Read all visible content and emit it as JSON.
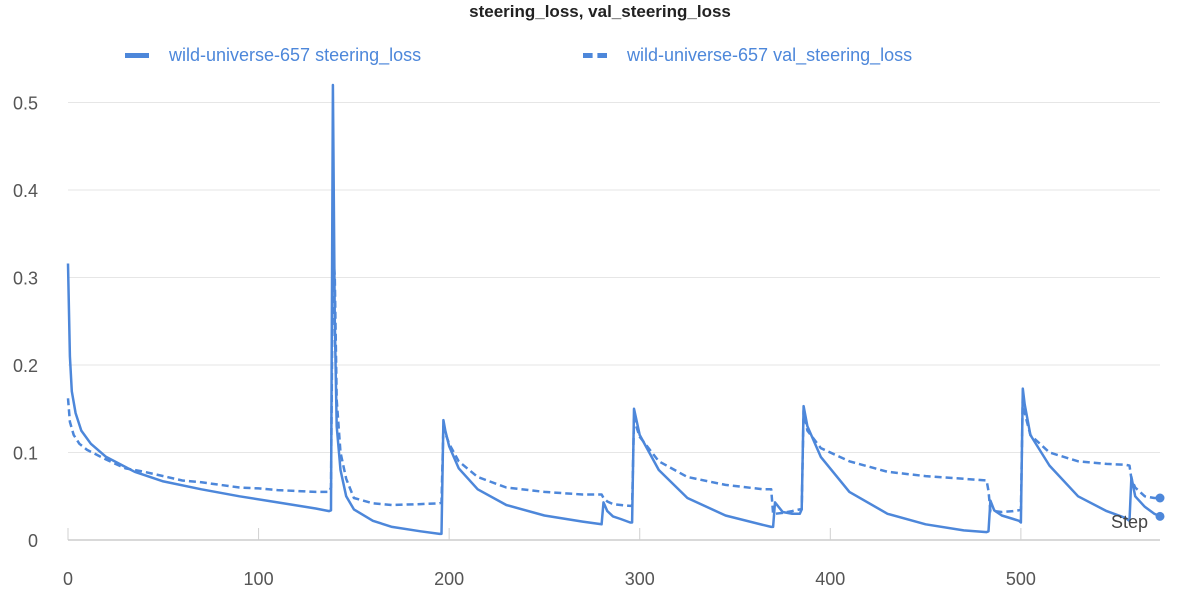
{
  "chart_data": {
    "type": "line",
    "title": "steering_loss, val_steering_loss",
    "xlabel": "Step",
    "ylabel": "",
    "xlim": [
      0,
      573
    ],
    "ylim": [
      0,
      0.52
    ],
    "x_ticks": [
      0,
      100,
      200,
      300,
      400,
      500
    ],
    "y_ticks": [
      0,
      0.1,
      0.2,
      0.3,
      0.4,
      0.5
    ],
    "y_tick_labels": [
      "0",
      "0.1",
      "0.2",
      "0.3",
      "0.4",
      "0.5"
    ],
    "grid": "horizontal",
    "legend_position": "top",
    "color": "#4d87da",
    "series": [
      {
        "name": "wild-universe-657 steering_loss",
        "style": "solid",
        "x": [
          0,
          1,
          2,
          4,
          7,
          12,
          20,
          35,
          50,
          70,
          90,
          110,
          130,
          137,
          138,
          139,
          140,
          141,
          143,
          146,
          150,
          160,
          170,
          185,
          195,
          196,
          197,
          198,
          200,
          205,
          215,
          230,
          250,
          270,
          280,
          281,
          283,
          286,
          290,
          295,
          296,
          297,
          300,
          310,
          325,
          345,
          365,
          369,
          370,
          371,
          375,
          380,
          384,
          385,
          386,
          388,
          395,
          410,
          430,
          450,
          470,
          482,
          483,
          484,
          486,
          490,
          496,
          499,
          500,
          501,
          502,
          505,
          515,
          530,
          545,
          555,
          557,
          558,
          560,
          565,
          570,
          573
        ],
        "y": [
          0.316,
          0.21,
          0.17,
          0.145,
          0.125,
          0.11,
          0.095,
          0.078,
          0.067,
          0.058,
          0.05,
          0.043,
          0.036,
          0.033,
          0.034,
          0.52,
          0.25,
          0.13,
          0.08,
          0.05,
          0.035,
          0.022,
          0.015,
          0.01,
          0.007,
          0.007,
          0.137,
          0.125,
          0.107,
          0.082,
          0.058,
          0.04,
          0.028,
          0.021,
          0.018,
          0.043,
          0.033,
          0.027,
          0.024,
          0.02,
          0.02,
          0.15,
          0.12,
          0.08,
          0.048,
          0.028,
          0.017,
          0.015,
          0.015,
          0.043,
          0.032,
          0.03,
          0.03,
          0.035,
          0.153,
          0.13,
          0.095,
          0.055,
          0.03,
          0.018,
          0.011,
          0.009,
          0.01,
          0.045,
          0.034,
          0.028,
          0.024,
          0.022,
          0.02,
          0.173,
          0.155,
          0.12,
          0.085,
          0.05,
          0.033,
          0.025,
          0.022,
          0.072,
          0.05,
          0.038,
          0.03,
          0.027
        ]
      },
      {
        "name": "wild-universe-657 val_steering_loss",
        "style": "dashed",
        "x": [
          0,
          1,
          3,
          6,
          10,
          20,
          30,
          40,
          50,
          60,
          70,
          80,
          90,
          100,
          110,
          120,
          130,
          137,
          138,
          139,
          140,
          141,
          143,
          146,
          150,
          160,
          170,
          185,
          195,
          196,
          197,
          198,
          200,
          205,
          215,
          230,
          250,
          270,
          280,
          281,
          283,
          286,
          290,
          295,
          296,
          297,
          300,
          310,
          325,
          345,
          365,
          369,
          370,
          371,
          375,
          380,
          384,
          385,
          386,
          388,
          395,
          410,
          430,
          450,
          470,
          482,
          483,
          484,
          486,
          490,
          496,
          499,
          500,
          501,
          502,
          505,
          515,
          530,
          545,
          555,
          557,
          558,
          560,
          565,
          570,
          573
        ],
        "y": [
          0.162,
          0.135,
          0.12,
          0.11,
          0.103,
          0.092,
          0.082,
          0.078,
          0.073,
          0.068,
          0.066,
          0.063,
          0.06,
          0.059,
          0.057,
          0.056,
          0.055,
          0.055,
          0.06,
          0.335,
          0.3,
          0.16,
          0.1,
          0.07,
          0.048,
          0.042,
          0.04,
          0.041,
          0.042,
          0.043,
          0.13,
          0.122,
          0.11,
          0.09,
          0.072,
          0.06,
          0.055,
          0.052,
          0.052,
          0.048,
          0.044,
          0.041,
          0.04,
          0.039,
          0.039,
          0.138,
          0.118,
          0.09,
          0.072,
          0.063,
          0.058,
          0.058,
          0.03,
          0.03,
          0.031,
          0.033,
          0.035,
          0.035,
          0.148,
          0.125,
          0.105,
          0.09,
          0.078,
          0.073,
          0.07,
          0.068,
          0.056,
          0.033,
          0.033,
          0.032,
          0.033,
          0.034,
          0.035,
          0.166,
          0.145,
          0.12,
          0.1,
          0.09,
          0.087,
          0.086,
          0.085,
          0.07,
          0.06,
          0.05,
          0.048,
          0.048
        ]
      }
    ]
  }
}
